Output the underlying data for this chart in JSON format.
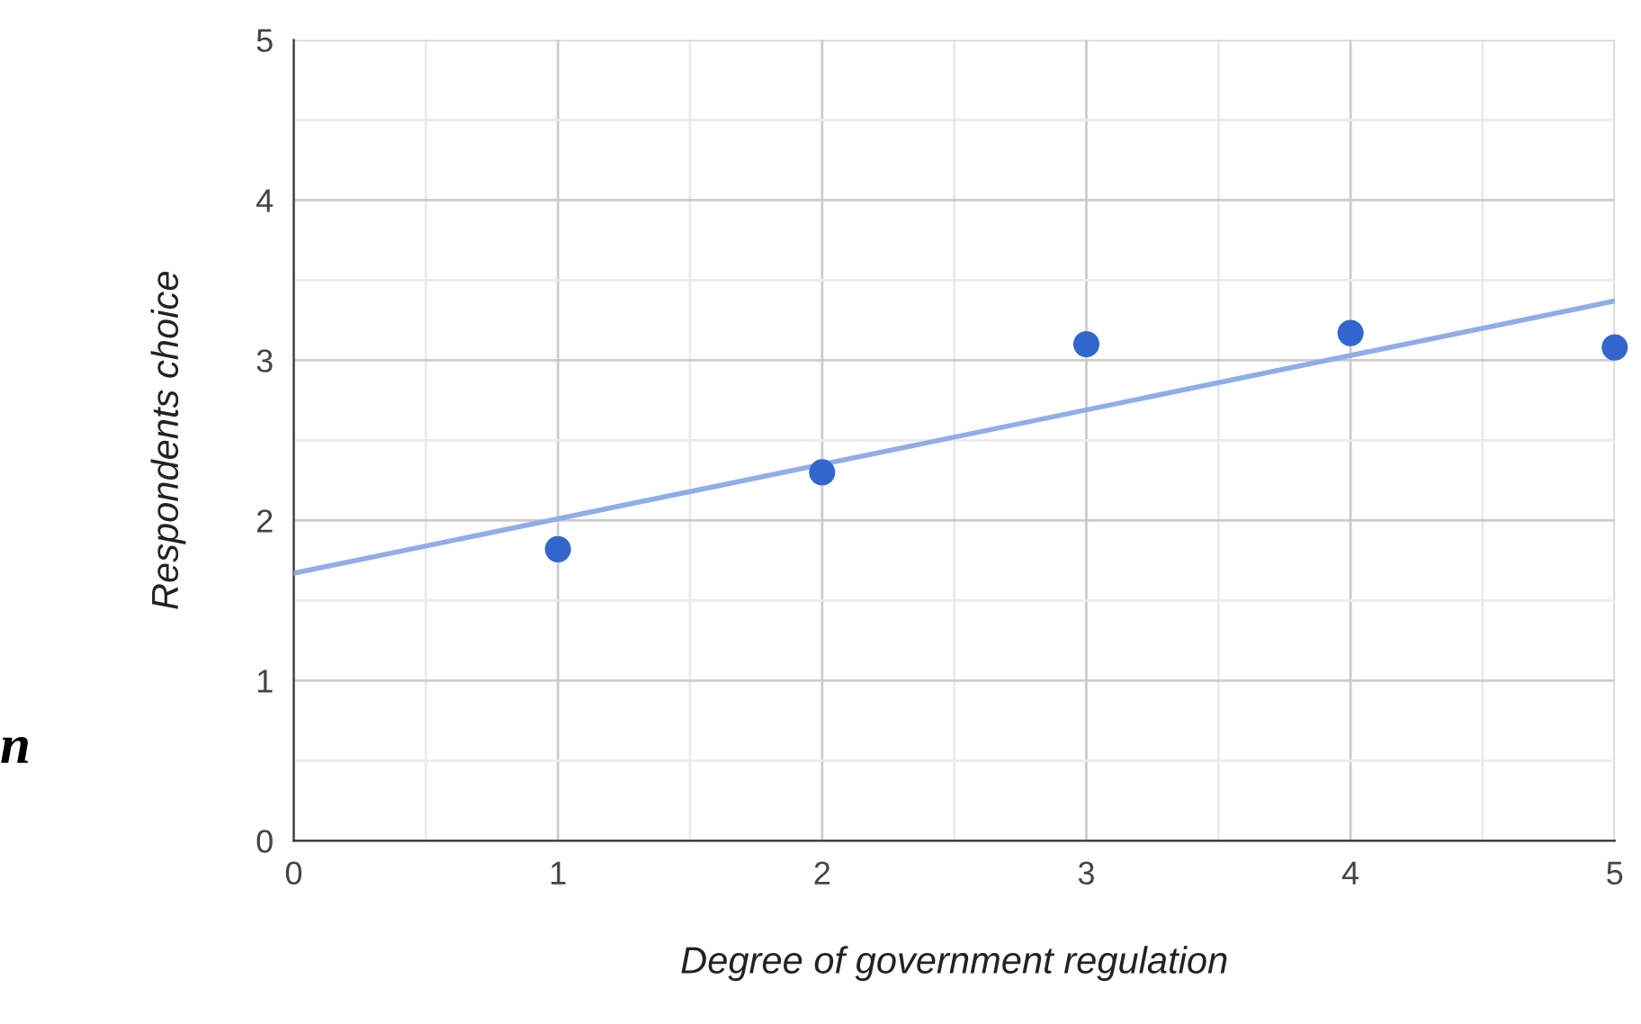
{
  "chart_data": {
    "type": "scatter",
    "xlabel": "Degree of government regulation",
    "ylabel": "Respondents choice",
    "series": [
      {
        "marker": "circle",
        "color": "#3366cc",
        "x": [
          1,
          2,
          3,
          4,
          5
        ],
        "values": [
          1.82,
          2.3,
          3.1,
          3.17,
          3.08
        ]
      },
      {
        "type": "line",
        "marker": "none",
        "color": "#8faee6",
        "x": [
          0,
          5
        ],
        "values": [
          1.67,
          3.37
        ]
      }
    ],
    "xlim": [
      0,
      5
    ],
    "ylim": [
      0,
      5
    ],
    "xticks": [
      0,
      {
        "value": 0.5,
        "label": null
      },
      1,
      {
        "value": 1.5,
        "label": null
      },
      2,
      {
        "value": 2.5,
        "label": null
      },
      3,
      {
        "value": 3.5,
        "label": null
      },
      4,
      {
        "value": 4.5,
        "label": null
      },
      5
    ],
    "yticks": [
      0,
      {
        "value": 0.5,
        "label": null
      },
      1,
      {
        "value": 1.5,
        "label": null
      },
      2,
      {
        "value": 2.5,
        "label": null
      },
      3,
      {
        "value": 3.5,
        "label": null
      },
      4,
      {
        "value": 4.5,
        "label": null
      },
      5
    ],
    "grid": true,
    "legend": false,
    "annotations": [
      "n"
    ]
  }
}
